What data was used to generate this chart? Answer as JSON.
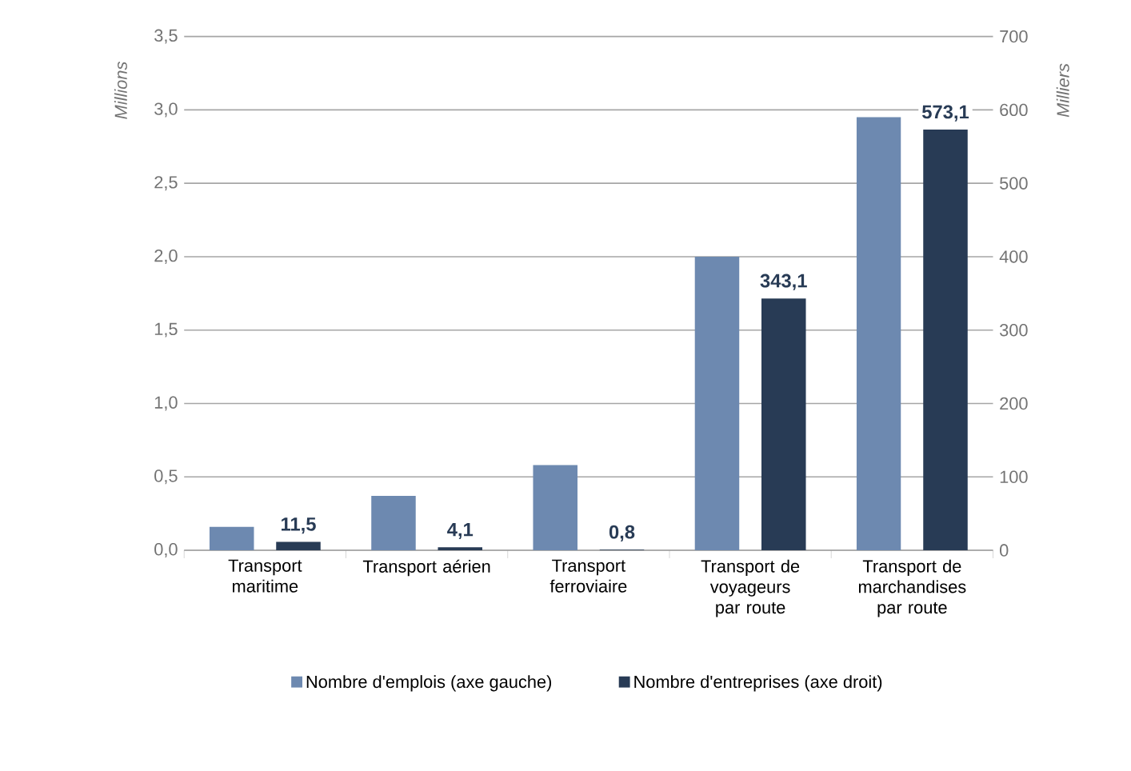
{
  "chart_data": {
    "type": "bar",
    "categories": [
      "Transport maritime",
      "Transport aérien",
      "Transport ferroviaire",
      "Transport de voyageurs par route",
      "Transport de marchandises par route"
    ],
    "series": [
      {
        "name": "Nombre d'emplois (axe gauche)",
        "color": "#6d89b0",
        "axis": "y",
        "values": [
          0.16,
          0.37,
          0.58,
          2.0,
          2.95
        ]
      },
      {
        "name": "Nombre d'entreprises (axe droit)",
        "color": "#283b55",
        "axis": "y2",
        "values": [
          11.5,
          4.1,
          0.8,
          343.1,
          573.1
        ],
        "value_labels": [
          "11,5",
          "4,1",
          "0,8",
          "343,1",
          "573,1"
        ]
      }
    ],
    "ylabel": "Millions",
    "y2label": "Milliers",
    "ylim": [
      0,
      3.5
    ],
    "yticks": [
      {
        "value": 0,
        "label": "0,0"
      },
      {
        "value": 0.5,
        "label": "0,5"
      },
      {
        "value": 1,
        "label": "1,0"
      },
      {
        "value": 1.5,
        "label": "1,5"
      },
      {
        "value": 2,
        "label": "2,0"
      },
      {
        "value": 2.5,
        "label": "2,5"
      },
      {
        "value": 3,
        "label": "3,0"
      },
      {
        "value": 3.5,
        "label": "3,5"
      }
    ],
    "y2lim": [
      0,
      700
    ],
    "y2ticks": [
      0,
      100,
      200,
      300,
      400,
      500,
      600,
      700
    ],
    "grid": "y",
    "legend": "bottom"
  }
}
